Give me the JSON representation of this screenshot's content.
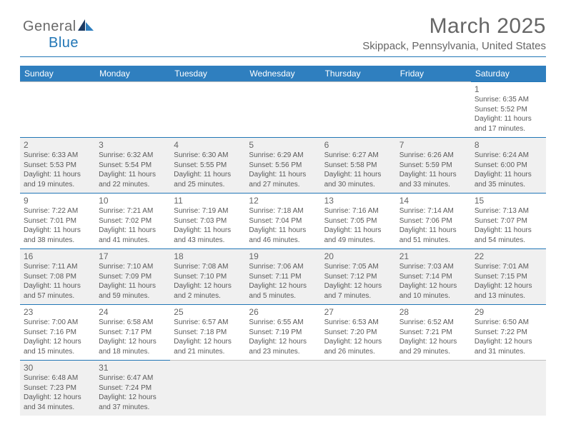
{
  "logo": {
    "text1": "General",
    "text2": "Blue",
    "color_gray": "#6a6a6a",
    "color_blue": "#2176b6"
  },
  "header": {
    "title": "March 2025",
    "subtitle": "Skippack, Pennsylvania, United States"
  },
  "style": {
    "header_bg": "#2f7fbf",
    "header_fg": "#ffffff",
    "row_even_bg": "#f0f0f0",
    "row_odd_bg": "#ffffff",
    "border_color": "#2176b6",
    "text_color": "#5a5a5a",
    "title_fontsize": 30,
    "subtitle_fontsize": 15,
    "daynum_fontsize": 12,
    "dayinfo_fontsize": 10
  },
  "columns": [
    "Sunday",
    "Monday",
    "Tuesday",
    "Wednesday",
    "Thursday",
    "Friday",
    "Saturday"
  ],
  "weeks": [
    [
      null,
      null,
      null,
      null,
      null,
      null,
      {
        "n": "1",
        "sr": "6:35 AM",
        "ss": "5:52 PM",
        "dl": "11 hours and 17 minutes."
      }
    ],
    [
      {
        "n": "2",
        "sr": "6:33 AM",
        "ss": "5:53 PM",
        "dl": "11 hours and 19 minutes."
      },
      {
        "n": "3",
        "sr": "6:32 AM",
        "ss": "5:54 PM",
        "dl": "11 hours and 22 minutes."
      },
      {
        "n": "4",
        "sr": "6:30 AM",
        "ss": "5:55 PM",
        "dl": "11 hours and 25 minutes."
      },
      {
        "n": "5",
        "sr": "6:29 AM",
        "ss": "5:56 PM",
        "dl": "11 hours and 27 minutes."
      },
      {
        "n": "6",
        "sr": "6:27 AM",
        "ss": "5:58 PM",
        "dl": "11 hours and 30 minutes."
      },
      {
        "n": "7",
        "sr": "6:26 AM",
        "ss": "5:59 PM",
        "dl": "11 hours and 33 minutes."
      },
      {
        "n": "8",
        "sr": "6:24 AM",
        "ss": "6:00 PM",
        "dl": "11 hours and 35 minutes."
      }
    ],
    [
      {
        "n": "9",
        "sr": "7:22 AM",
        "ss": "7:01 PM",
        "dl": "11 hours and 38 minutes."
      },
      {
        "n": "10",
        "sr": "7:21 AM",
        "ss": "7:02 PM",
        "dl": "11 hours and 41 minutes."
      },
      {
        "n": "11",
        "sr": "7:19 AM",
        "ss": "7:03 PM",
        "dl": "11 hours and 43 minutes."
      },
      {
        "n": "12",
        "sr": "7:18 AM",
        "ss": "7:04 PM",
        "dl": "11 hours and 46 minutes."
      },
      {
        "n": "13",
        "sr": "7:16 AM",
        "ss": "7:05 PM",
        "dl": "11 hours and 49 minutes."
      },
      {
        "n": "14",
        "sr": "7:14 AM",
        "ss": "7:06 PM",
        "dl": "11 hours and 51 minutes."
      },
      {
        "n": "15",
        "sr": "7:13 AM",
        "ss": "7:07 PM",
        "dl": "11 hours and 54 minutes."
      }
    ],
    [
      {
        "n": "16",
        "sr": "7:11 AM",
        "ss": "7:08 PM",
        "dl": "11 hours and 57 minutes."
      },
      {
        "n": "17",
        "sr": "7:10 AM",
        "ss": "7:09 PM",
        "dl": "11 hours and 59 minutes."
      },
      {
        "n": "18",
        "sr": "7:08 AM",
        "ss": "7:10 PM",
        "dl": "12 hours and 2 minutes."
      },
      {
        "n": "19",
        "sr": "7:06 AM",
        "ss": "7:11 PM",
        "dl": "12 hours and 5 minutes."
      },
      {
        "n": "20",
        "sr": "7:05 AM",
        "ss": "7:12 PM",
        "dl": "12 hours and 7 minutes."
      },
      {
        "n": "21",
        "sr": "7:03 AM",
        "ss": "7:14 PM",
        "dl": "12 hours and 10 minutes."
      },
      {
        "n": "22",
        "sr": "7:01 AM",
        "ss": "7:15 PM",
        "dl": "12 hours and 13 minutes."
      }
    ],
    [
      {
        "n": "23",
        "sr": "7:00 AM",
        "ss": "7:16 PM",
        "dl": "12 hours and 15 minutes."
      },
      {
        "n": "24",
        "sr": "6:58 AM",
        "ss": "7:17 PM",
        "dl": "12 hours and 18 minutes."
      },
      {
        "n": "25",
        "sr": "6:57 AM",
        "ss": "7:18 PM",
        "dl": "12 hours and 21 minutes."
      },
      {
        "n": "26",
        "sr": "6:55 AM",
        "ss": "7:19 PM",
        "dl": "12 hours and 23 minutes."
      },
      {
        "n": "27",
        "sr": "6:53 AM",
        "ss": "7:20 PM",
        "dl": "12 hours and 26 minutes."
      },
      {
        "n": "28",
        "sr": "6:52 AM",
        "ss": "7:21 PM",
        "dl": "12 hours and 29 minutes."
      },
      {
        "n": "29",
        "sr": "6:50 AM",
        "ss": "7:22 PM",
        "dl": "12 hours and 31 minutes."
      }
    ],
    [
      {
        "n": "30",
        "sr": "6:48 AM",
        "ss": "7:23 PM",
        "dl": "12 hours and 34 minutes."
      },
      {
        "n": "31",
        "sr": "6:47 AM",
        "ss": "7:24 PM",
        "dl": "12 hours and 37 minutes."
      },
      null,
      null,
      null,
      null,
      null
    ]
  ],
  "labels": {
    "sunrise": "Sunrise:",
    "sunset": "Sunset:",
    "daylight": "Daylight:"
  }
}
